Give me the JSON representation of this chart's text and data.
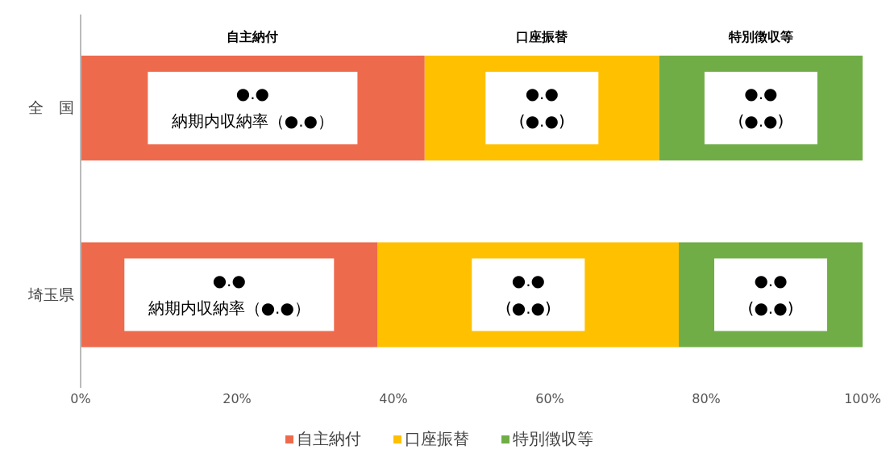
{
  "chart_data": {
    "type": "bar",
    "orientation": "horizontal",
    "stacked": true,
    "categories": [
      "全　国",
      "埼玉県"
    ],
    "series": [
      {
        "name": "自主納付",
        "color": "#ee6a4c",
        "values": [
          44,
          38
        ]
      },
      {
        "name": "口座振替",
        "color": "#ffc000",
        "values": [
          30,
          38.5
        ]
      },
      {
        "name": "特別徴収等",
        "color": "#70ad47",
        "values": [
          26,
          23.5
        ]
      }
    ],
    "xlim": [
      0,
      100
    ],
    "xticks": [
      {
        "value": 0,
        "label": "0%"
      },
      {
        "value": 20,
        "label": "20%"
      },
      {
        "value": 40,
        "label": "40%"
      },
      {
        "value": 60,
        "label": "60%"
      },
      {
        "value": 80,
        "label": "80%"
      },
      {
        "value": 100,
        "label": "100%"
      }
    ],
    "grid": false,
    "legend": "bottom",
    "annotations": [
      "●.●\n納期内収納率（●.●）",
      "●.●\n(●.●)",
      "●.●\n(●.●)",
      "●.●\n納期内収納率（●.●）",
      "●.●\n(●.●)",
      "●.●\n(●.●)"
    ]
  }
}
